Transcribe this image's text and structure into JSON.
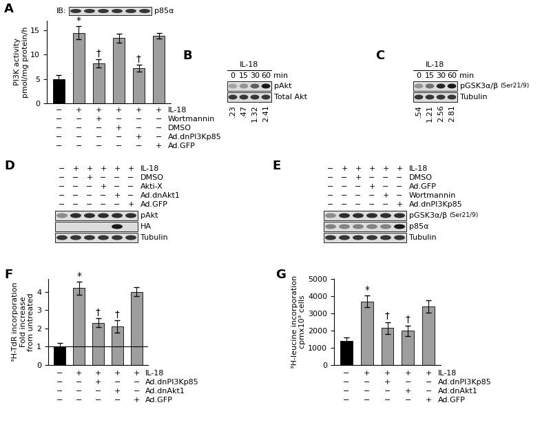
{
  "chart_data": [
    {
      "panel": "A",
      "type": "bar",
      "ylabel": "PI3K activity\npmol/mg protein/h",
      "categories": [
        null,
        null,
        null,
        null,
        null,
        null
      ],
      "values": [
        5.0,
        14.5,
        8.2,
        13.4,
        7.2,
        13.9
      ],
      "errors": [
        0.8,
        1.3,
        0.9,
        0.9,
        0.7,
        0.6
      ],
      "colors": [
        "#000000",
        "#9e9e9e",
        "#9e9e9e",
        "#9e9e9e",
        "#9e9e9e",
        "#9e9e9e"
      ],
      "ylim": [
        0,
        17
      ],
      "yticks": [
        0,
        5,
        10,
        15
      ],
      "tick_labels": "y",
      "annotations": [
        {
          "index": 1,
          "text": "*"
        },
        {
          "index": 2,
          "text": "†"
        },
        {
          "index": 4,
          "text": "†"
        }
      ],
      "conditions": [
        {
          "label": "IL-18",
          "signs": [
            "−",
            "+",
            "+",
            "+",
            "+",
            "+"
          ]
        },
        {
          "label": "Wortmannin",
          "signs": [
            "−",
            "−",
            "+",
            "−",
            "−",
            "−"
          ]
        },
        {
          "label": "DMSO",
          "signs": [
            "−",
            "−",
            "−",
            "+",
            "−",
            "−"
          ]
        },
        {
          "label": "Ad.dnPI3Kp85",
          "signs": [
            "−",
            "−",
            "−",
            "−",
            "+",
            "−"
          ]
        },
        {
          "label": "Ad.GFP",
          "signs": [
            "−",
            "−",
            "−",
            "−",
            "−",
            "+"
          ]
        }
      ],
      "inset_blot": {
        "prefix": "IB:",
        "band": "p85α"
      }
    },
    {
      "panel": "F",
      "type": "bar",
      "ylabel": "³H-TdR incorporation\nFold increase\nfrom untreated",
      "categories": [
        null,
        null,
        null,
        null,
        null
      ],
      "values": [
        1.0,
        4.2,
        2.3,
        2.1,
        4.0
      ],
      "errors": [
        0.2,
        0.35,
        0.25,
        0.35,
        0.25
      ],
      "colors": [
        "#000000",
        "#9e9e9e",
        "#9e9e9e",
        "#9e9e9e",
        "#9e9e9e"
      ],
      "ylim": [
        0,
        4.7
      ],
      "yticks": [
        0,
        1,
        2,
        3,
        4
      ],
      "tick_labels": "y",
      "hline": 1,
      "annotations": [
        {
          "index": 1,
          "text": "*"
        },
        {
          "index": 2,
          "text": "†"
        },
        {
          "index": 3,
          "text": "†"
        }
      ],
      "conditions": [
        {
          "label": "IL-18",
          "signs": [
            "−",
            "+",
            "+",
            "+",
            "+"
          ]
        },
        {
          "label": "Ad.dnPI3Kp85",
          "signs": [
            "−",
            "−",
            "+",
            "−",
            "−"
          ]
        },
        {
          "label": "Ad.dnAkt1",
          "signs": [
            "−",
            "−",
            "−",
            "+",
            "−"
          ]
        },
        {
          "label": "Ad.GFP",
          "signs": [
            "−",
            "−",
            "−",
            "−",
            "+"
          ]
        }
      ]
    },
    {
      "panel": "G",
      "type": "bar",
      "ylabel": "³H-leucine incorporation\ncpmx10³ cells",
      "categories": [
        null,
        null,
        null,
        null,
        null
      ],
      "values": [
        1400,
        3700,
        2150,
        2000,
        3400
      ],
      "errors": [
        200,
        350,
        350,
        300,
        350
      ],
      "colors": [
        "#000000",
        "#9e9e9e",
        "#9e9e9e",
        "#9e9e9e",
        "#9e9e9e"
      ],
      "ylim": [
        0,
        5000
      ],
      "yticks": [
        0,
        1000,
        2000,
        3000,
        4000,
        5000
      ],
      "tick_labels": "y",
      "annotations": [
        {
          "index": 1,
          "text": "*"
        },
        {
          "index": 2,
          "text": "†"
        },
        {
          "index": 3,
          "text": "†"
        }
      ],
      "conditions": [
        {
          "label": "IL-18",
          "signs": [
            "−",
            "+",
            "+",
            "+",
            "+"
          ]
        },
        {
          "label": "Ad.dnPI3Kp85",
          "signs": [
            "−",
            "−",
            "+",
            "−",
            "−"
          ]
        },
        {
          "label": "Ad.dnAkt1",
          "signs": [
            "−",
            "−",
            "−",
            "+",
            "−"
          ]
        },
        {
          "label": "Ad.GFP",
          "signs": [
            "−",
            "−",
            "−",
            "−",
            "+"
          ]
        }
      ]
    }
  ],
  "blots": [
    {
      "panel": "B",
      "header": "IL-18",
      "lanes": [
        "0",
        "15",
        "30",
        "60"
      ],
      "lane_unit": "min",
      "bands": [
        {
          "name": "pAkt"
        },
        {
          "name": "Total Akt"
        }
      ],
      "quantification": [
        0.23,
        0.47,
        1.32,
        2.41
      ],
      "quantification_labels": [
        ".23",
        ".47",
        "1.32",
        "2.41"
      ]
    },
    {
      "panel": "C",
      "header": "IL-18",
      "lanes": [
        "0",
        "15",
        "30",
        "60"
      ],
      "lane_unit": "min",
      "bands": [
        {
          "name": "pGSK3α/β",
          "suffix": "(Ser21/9)"
        },
        {
          "name": "Tubulin"
        }
      ],
      "quantification": [
        0.54,
        1.21,
        2.56,
        2.81
      ],
      "quantification_labels": [
        ".54",
        "1.21",
        "2.56",
        "2.81"
      ]
    },
    {
      "panel": "D",
      "conditions": [
        {
          "label": "IL-18",
          "signs": [
            "−",
            "+",
            "+",
            "+",
            "+",
            "+"
          ]
        },
        {
          "label": "DMSO",
          "signs": [
            "−",
            "−",
            "+",
            "−",
            "−",
            "−"
          ]
        },
        {
          "label": "Akti-X",
          "signs": [
            "−",
            "−",
            "−",
            "+",
            "−",
            "−"
          ]
        },
        {
          "label": "Ad.dnAkt1",
          "signs": [
            "−",
            "−",
            "−",
            "−",
            "+",
            "−"
          ]
        },
        {
          "label": "Ad.GFP",
          "signs": [
            "−",
            "−",
            "−",
            "−",
            "−",
            "+"
          ]
        }
      ],
      "bands": [
        {
          "name": "pAkt"
        },
        {
          "name": "HA"
        },
        {
          "name": "Tubulin"
        }
      ]
    },
    {
      "panel": "E",
      "conditions": [
        {
          "label": "IL-18",
          "signs": [
            "−",
            "+",
            "+",
            "+",
            "+",
            "+"
          ]
        },
        {
          "label": "DMSO",
          "signs": [
            "−",
            "−",
            "+",
            "−",
            "−",
            "−"
          ]
        },
        {
          "label": "Ad.GFP",
          "signs": [
            "−",
            "−",
            "−",
            "+",
            "−",
            "−"
          ]
        },
        {
          "label": "Wortmannin",
          "signs": [
            "−",
            "−",
            "−",
            "−",
            "+",
            "−"
          ]
        },
        {
          "label": "Ad.dnPI3Kp85",
          "signs": [
            "−",
            "−",
            "−",
            "−",
            "−",
            "+"
          ]
        }
      ],
      "bands": [
        {
          "name": "pGSK3α/β",
          "suffix": "(Ser21/9)"
        },
        {
          "name": "p85α"
        },
        {
          "name": "Tubulin"
        }
      ]
    }
  ]
}
